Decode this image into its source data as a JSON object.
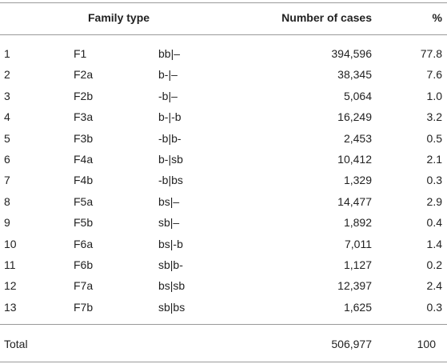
{
  "table": {
    "header": [
      "Family type",
      "Number of cases",
      "%"
    ],
    "rows": [
      [
        "1",
        "F1",
        "bb|–",
        "394,596",
        "77.8"
      ],
      [
        "2",
        "F2a",
        "b-|–",
        "38,345",
        "7.6"
      ],
      [
        "3",
        "F2b",
        "-b|–",
        "5,064",
        "1.0"
      ],
      [
        "4",
        "F3a",
        "b-|-b",
        "16,249",
        "3.2"
      ],
      [
        "5",
        "F3b",
        "-b|b-",
        "2,453",
        "0.5"
      ],
      [
        "6",
        "F4a",
        "b-|sb",
        "10,412",
        "2.1"
      ],
      [
        "7",
        "F4b",
        "-b|bs",
        "1,329",
        "0.3"
      ],
      [
        "8",
        "F5a",
        "bs|–",
        "14,477",
        "2.9"
      ],
      [
        "9",
        "F5b",
        "sb|–",
        "1,892",
        "0.4"
      ],
      [
        "10",
        "F6a",
        "bs|-b",
        "7,011",
        "1.4"
      ],
      [
        "11",
        "F6b",
        "sb|b-",
        "1,127",
        "0.2"
      ],
      [
        "12",
        "F7a",
        "bs|sb",
        "12,397",
        "2.4"
      ],
      [
        "13",
        "F7b",
        "sb|bs",
        "1,625",
        "0.3"
      ]
    ],
    "total": [
      "Total",
      "506,977",
      "100"
    ]
  }
}
